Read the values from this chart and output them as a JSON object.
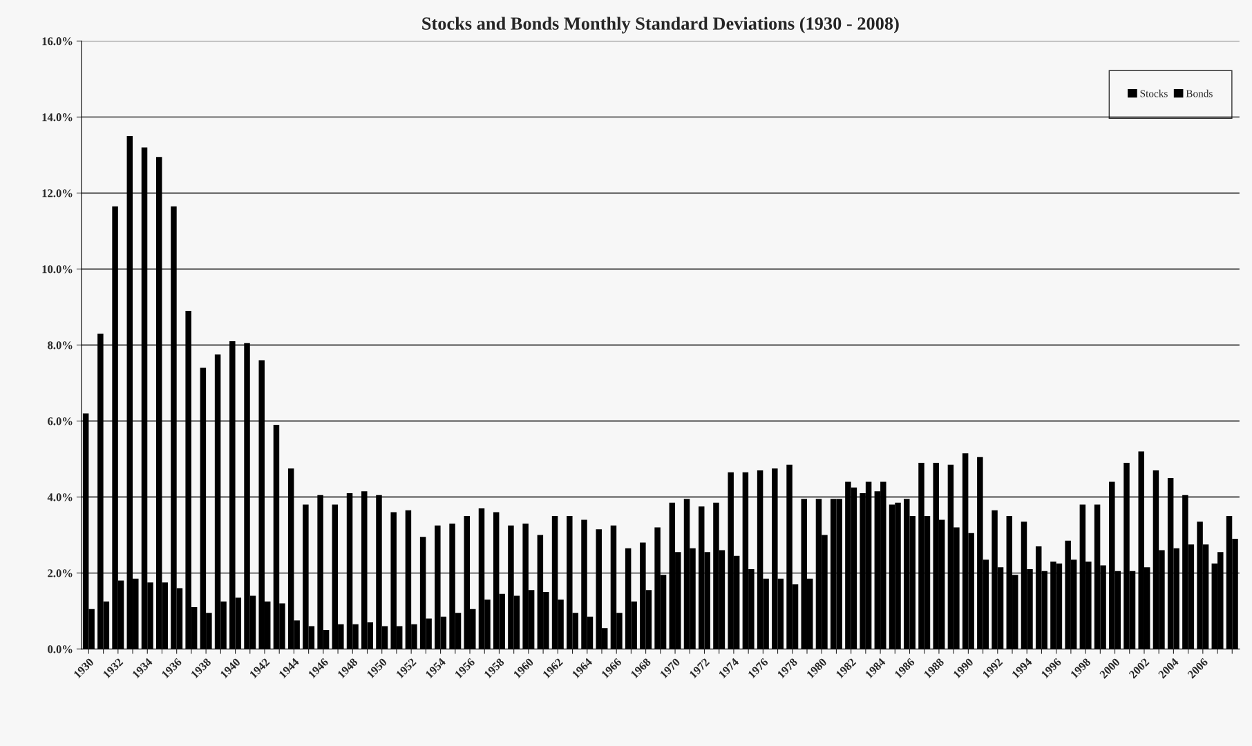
{
  "chart_data": {
    "type": "bar",
    "title": "Stocks and Bonds Monthly Standard Deviations (1930 - 2008)",
    "categories": [
      "1930",
      null,
      "1932",
      null,
      "1934",
      null,
      "1936",
      null,
      "1938",
      null,
      "1940",
      null,
      "1942",
      null,
      "1944",
      null,
      "1946",
      null,
      "1948",
      null,
      "1950",
      null,
      "1952",
      null,
      "1954",
      null,
      "1956",
      null,
      "1958",
      null,
      "1960",
      null,
      "1962",
      null,
      "1964",
      null,
      "1966",
      null,
      "1968",
      null,
      "1970",
      null,
      "1972",
      null,
      "1974",
      null,
      "1976",
      null,
      "1978",
      null,
      "1980",
      null,
      "1982",
      null,
      "1984",
      null,
      "1986",
      null,
      "1988",
      null,
      "1990",
      null,
      "1992",
      null,
      "1994",
      null,
      "1996",
      null,
      "1998",
      null,
      "2000",
      null,
      "2002",
      null,
      "2004",
      null,
      "2006",
      null,
      null
    ],
    "series": [
      {
        "name": "Stocks",
        "color": "#000000",
        "values": [
          6.2,
          8.3,
          11.65,
          13.5,
          13.2,
          12.95,
          11.65,
          8.9,
          7.4,
          7.75,
          8.1,
          8.05,
          7.6,
          5.9,
          4.75,
          3.8,
          4.05,
          3.8,
          4.1,
          4.15,
          4.05,
          3.6,
          3.65,
          2.95,
          3.25,
          3.3,
          3.5,
          3.7,
          3.6,
          3.25,
          3.3,
          3.0,
          3.5,
          3.5,
          3.4,
          3.15,
          3.25,
          2.65,
          2.8,
          3.2,
          3.85,
          3.95,
          3.75,
          3.85,
          4.65,
          4.65,
          4.7,
          4.75,
          4.85,
          3.95,
          3.95,
          3.95,
          4.4,
          4.1,
          4.15,
          3.8,
          3.95,
          4.9,
          4.9,
          4.85,
          5.15,
          5.05,
          3.65,
          3.5,
          3.35,
          2.7,
          2.3,
          2.85,
          3.8,
          3.8,
          4.4,
          4.9,
          5.2,
          4.7,
          4.5,
          4.05,
          3.35,
          2.25,
          3.5
        ]
      },
      {
        "name": "Bonds",
        "color": "#000000",
        "values": [
          1.05,
          1.25,
          1.8,
          1.85,
          1.75,
          1.75,
          1.6,
          1.1,
          0.95,
          1.25,
          1.35,
          1.4,
          1.25,
          1.2,
          0.75,
          0.6,
          0.5,
          0.65,
          0.65,
          0.7,
          0.6,
          0.6,
          0.65,
          0.8,
          0.85,
          0.95,
          1.05,
          1.3,
          1.45,
          1.4,
          1.55,
          1.5,
          1.3,
          0.95,
          0.85,
          0.55,
          0.95,
          1.25,
          1.55,
          1.95,
          2.55,
          2.65,
          2.55,
          2.6,
          2.45,
          2.1,
          1.85,
          1.85,
          1.7,
          1.85,
          3.0,
          3.95,
          4.25,
          4.4,
          4.4,
          3.85,
          3.5,
          3.5,
          3.4,
          3.2,
          3.05,
          2.35,
          2.15,
          1.95,
          2.1,
          2.05,
          2.25,
          2.35,
          2.3,
          2.2,
          2.05,
          2.05,
          2.15,
          2.6,
          2.65,
          2.75,
          2.75,
          2.55,
          2.9
        ]
      }
    ],
    "ylim": [
      0,
      16
    ],
    "yticks": [
      {
        "value": 0,
        "label": "0.0%"
      },
      {
        "value": 2,
        "label": "2.0%"
      },
      {
        "value": 4,
        "label": "4.0%"
      },
      {
        "value": 6,
        "label": "6.0%"
      },
      {
        "value": 8,
        "label": "8.0%"
      },
      {
        "value": 10,
        "label": "10.0%"
      },
      {
        "value": 12,
        "label": "12.0%"
      },
      {
        "value": 14,
        "label": "14.0%"
      },
      {
        "value": 16,
        "label": "16.0%"
      }
    ],
    "grid": "y",
    "legend": "top right"
  }
}
